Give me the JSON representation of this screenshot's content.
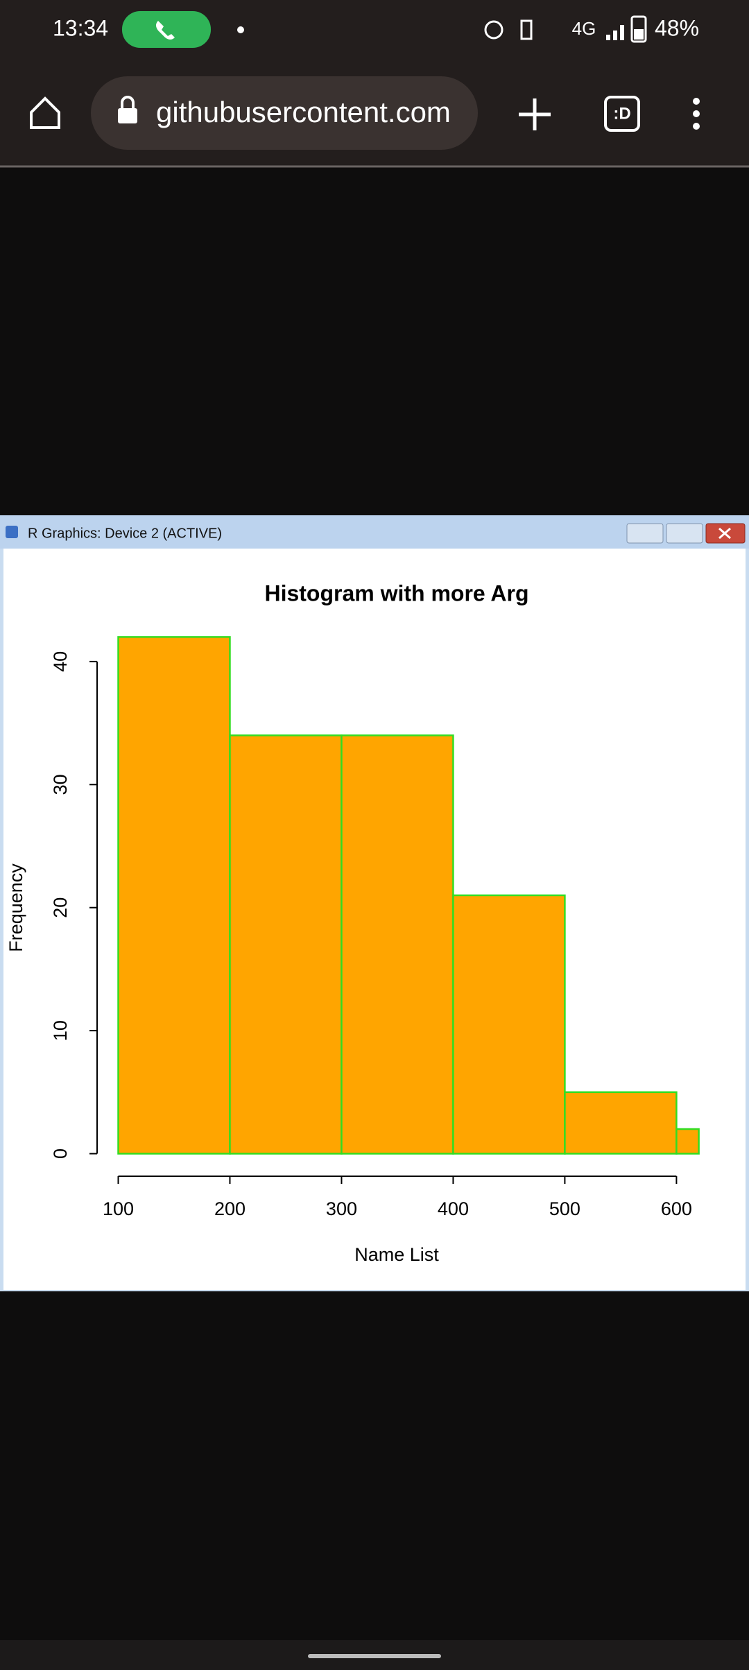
{
  "status_bar": {
    "time": "13:34",
    "network": "4G",
    "battery": "48%"
  },
  "browser": {
    "url": "githubusercontent.com",
    "tabs_icon": ":D"
  },
  "window": {
    "title": "R Graphics: Device 2 (ACTIVE)"
  },
  "chart_data": {
    "type": "histogram",
    "title": "Histogram with more Arg",
    "x_label": "Name List",
    "y_label": "Frequency",
    "bins": [
      100,
      200,
      300,
      400,
      500,
      600,
      620
    ],
    "values": [
      42,
      34,
      34,
      21,
      5,
      2
    ],
    "color": "#ffa500",
    "edge_color": "#33dd22",
    "xlim": [
      100,
      620
    ],
    "ylim": [
      0,
      42
    ],
    "xticks": [
      100,
      200,
      300,
      400,
      500,
      600
    ],
    "yticks": [
      0,
      10,
      20,
      30,
      40
    ],
    "grid": false
  }
}
